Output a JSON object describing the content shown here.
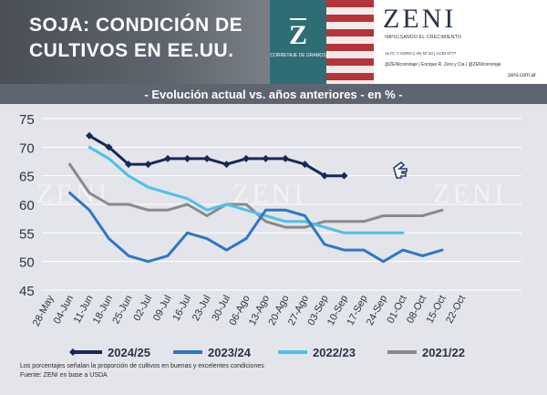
{
  "header": {
    "title_line1": "SOJA: CONDICIÓN DE",
    "title_line2": "CULTIVOS EN EE.UU.",
    "logo_letter": "Z",
    "logo_subtitle": "CORRETAJE DE GRANOS",
    "brand": "ZENI",
    "brand_tagline": "IMPULSANDO EL CRECIMIENTO",
    "brand_registration": "ALYC Y AGRO y AN Nº 33 | ACDI Nº77",
    "brand_social": "@ZENIcorretaje | Enrique R. Zeni y Cia | @ZENIcorretaje",
    "brand_web": "zeni.com.ar"
  },
  "subtitle": "- Evolución actual vs. años anteriores - en % -",
  "watermark": "ZENI",
  "footnote": "Los porcentajes señalan la proporción de cultivos en buenas y excelentes condiciones",
  "source": "Fuente: ZENI en base a USDA",
  "chart_data": {
    "type": "line",
    "title": "- Evolución actual vs. años anteriores - en % -",
    "ylim": [
      45,
      75
    ],
    "yticks": [
      45,
      50,
      55,
      60,
      65,
      70,
      75
    ],
    "grid": true,
    "legend_position": "bottom",
    "categories": [
      "28-May",
      "04-Jun",
      "11-Jun",
      "18-Jun",
      "25-Jun",
      "02-Jul",
      "09-Jul",
      "16-Jul",
      "23-Jul",
      "30-Jul",
      "06-Ago",
      "13-Ago",
      "20-Ago",
      "27-Ago",
      "03-Sep",
      "10-Sep",
      "17-Sep",
      "24-Sep",
      "01-Oct",
      "08-Oct",
      "15-Oct",
      "22-Oct"
    ],
    "series": [
      {
        "name": "2024/25",
        "color": "#162a57",
        "marker": "diamond",
        "values": [
          null,
          null,
          72,
          70,
          67,
          67,
          68,
          68,
          68,
          67,
          68,
          68,
          68,
          67,
          65,
          65,
          null,
          null,
          null,
          null,
          null,
          null
        ]
      },
      {
        "name": "2023/24",
        "color": "#2e77c4",
        "values": [
          null,
          62,
          59,
          54,
          51,
          50,
          51,
          55,
          54,
          52,
          54,
          59,
          59,
          58,
          53,
          52,
          52,
          50,
          52,
          51,
          52,
          null
        ]
      },
      {
        "name": "2022/23",
        "color": "#4fc0ea",
        "values": [
          null,
          null,
          70,
          68,
          65,
          63,
          62,
          61,
          59,
          60,
          59,
          58,
          57,
          57,
          56,
          55,
          55,
          55,
          55,
          null,
          null,
          null
        ]
      },
      {
        "name": "2021/22",
        "color": "#8a8a8a",
        "values": [
          null,
          67,
          62,
          60,
          60,
          59,
          59,
          60,
          58,
          60,
          60,
          57,
          56,
          56,
          57,
          57,
          57,
          58,
          58,
          58,
          59,
          null
        ]
      }
    ]
  }
}
